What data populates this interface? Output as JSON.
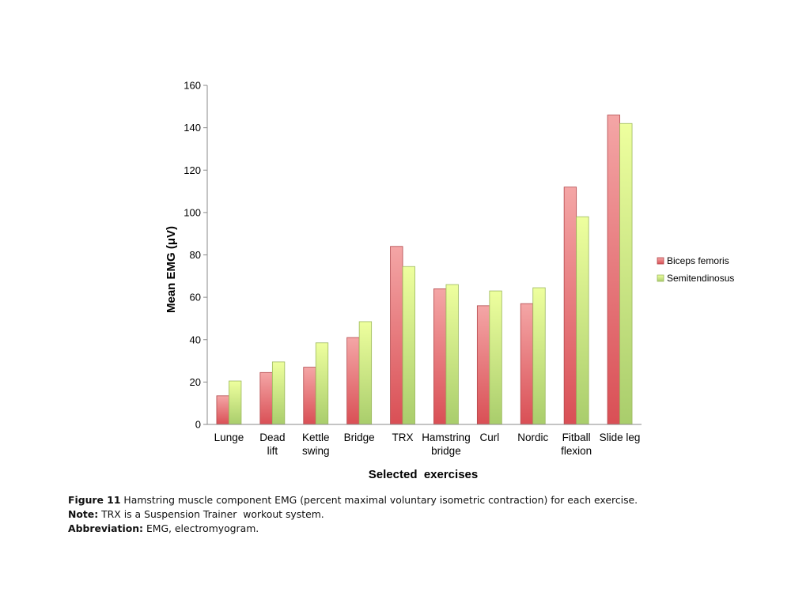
{
  "chart_data": {
    "type": "bar",
    "ylabel": "Mean EMG (μV)",
    "xlabel": "Selected  exercises",
    "ylim": [
      0,
      160
    ],
    "yticks": [
      0,
      20,
      40,
      60,
      80,
      100,
      120,
      140,
      160
    ],
    "grid": false,
    "legend_position": "right",
    "categories": [
      [
        "Lunge"
      ],
      [
        "Dead",
        "lift"
      ],
      [
        "Kettle",
        "swing"
      ],
      [
        "Bridge"
      ],
      [
        "TRX"
      ],
      [
        "Hamstring",
        "bridge"
      ],
      [
        "Curl"
      ],
      [
        "Nordic"
      ],
      [
        "Fitball",
        "flexion"
      ],
      [
        "Slide leg"
      ]
    ],
    "series": [
      {
        "name": "Biceps femoris",
        "color": "#e8868a",
        "values": [
          13.5,
          24.5,
          27,
          41,
          84,
          64,
          56,
          57,
          112,
          146
        ]
      },
      {
        "name": "Semitendinosus",
        "color": "#cfe593",
        "values": [
          20.5,
          29.5,
          38.5,
          48.5,
          74.5,
          66,
          63,
          64.5,
          98,
          142
        ]
      }
    ]
  },
  "caption": {
    "figure_label": "Figure 11",
    "figure_text": " Hamstring muscle component EMG (percent maximal voluntary isometric contraction) for each exercise.",
    "note_label": "Note:",
    "note_text": " TRX is a Suspension Trainer  workout system.",
    "abbrev_label": "Abbreviation:",
    "abbrev_text": " EMG, electromyogram."
  }
}
